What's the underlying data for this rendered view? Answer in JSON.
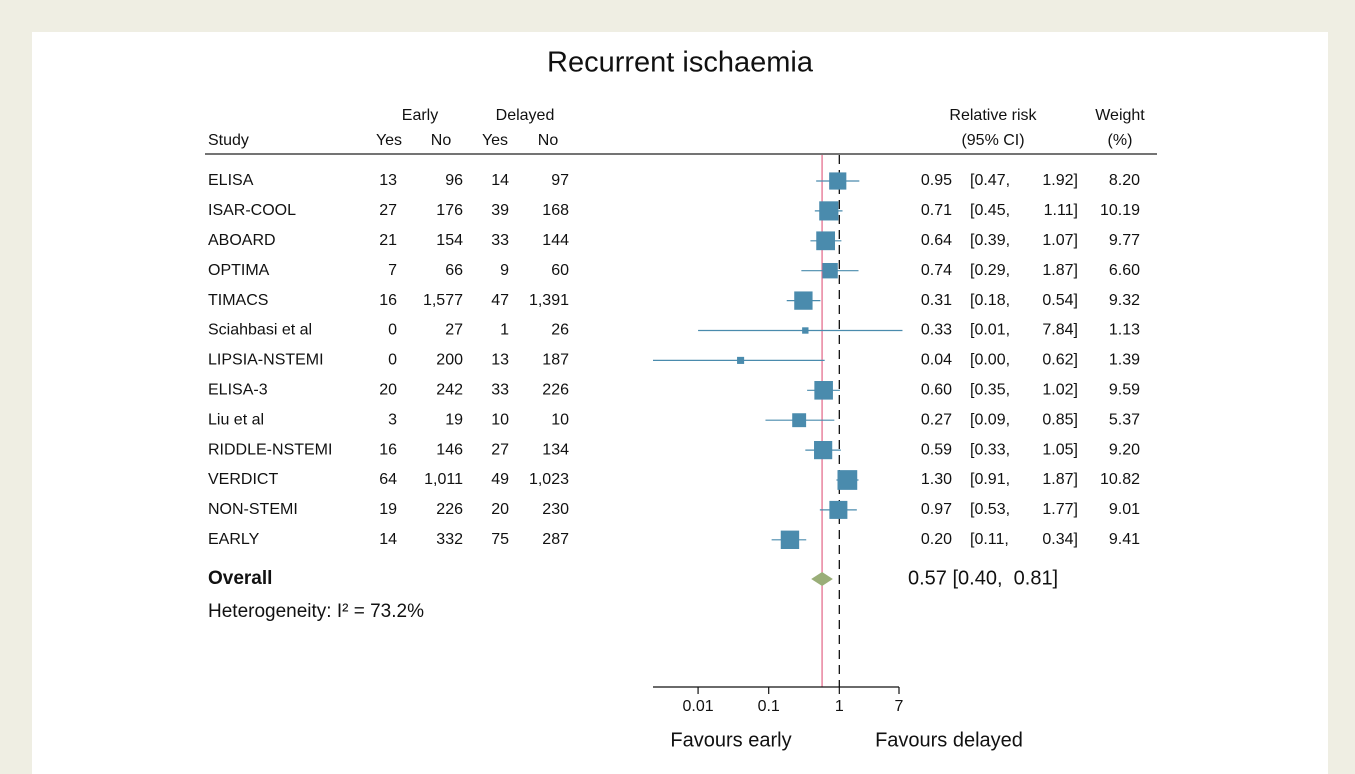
{
  "chart_data": {
    "type": "forest",
    "title": "Recurrent ischaemia",
    "group_headers": [
      "Early",
      "Delayed"
    ],
    "column_headers": [
      "Study",
      "Yes",
      "No",
      "Yes",
      "No"
    ],
    "rr_header": [
      "Relative risk",
      "(95% CI)"
    ],
    "weight_header": [
      "Weight",
      "(%)"
    ],
    "categories": [
      "ELISA",
      "ISAR-COOL",
      "ABOARD",
      "OPTIMA",
      "TIMACS",
      "Sciahbasi et al",
      "LIPSIA-NSTEMI",
      "ELISA-3",
      "Liu et al",
      "RIDDLE-NSTEMI",
      "VERDICT",
      "NON-STEMI",
      "EARLY"
    ],
    "counts": [
      [
        "13",
        "96",
        "14",
        "97"
      ],
      [
        "27",
        "176",
        "39",
        "168"
      ],
      [
        "21",
        "154",
        "33",
        "144"
      ],
      [
        "7",
        "66",
        "9",
        "60"
      ],
      [
        "16",
        "1,577",
        "47",
        "1,391"
      ],
      [
        "0",
        "27",
        "1",
        "26"
      ],
      [
        "0",
        "200",
        "13",
        "187"
      ],
      [
        "20",
        "242",
        "33",
        "226"
      ],
      [
        "3",
        "19",
        "10",
        "10"
      ],
      [
        "16",
        "146",
        "27",
        "134"
      ],
      [
        "64",
        "1,011",
        "49",
        "1,023"
      ],
      [
        "19",
        "226",
        "20",
        "230"
      ],
      [
        "14",
        "332",
        "75",
        "287"
      ]
    ],
    "values": [
      0.95,
      0.71,
      0.64,
      0.74,
      0.31,
      0.33,
      0.04,
      0.6,
      0.27,
      0.59,
      1.3,
      0.97,
      0.2
    ],
    "value_labels": [
      "0.95",
      "0.71",
      "0.64",
      "0.74",
      "0.31",
      "0.33",
      "0.04",
      "0.60",
      "0.27",
      "0.59",
      "1.30",
      "0.97",
      "0.20"
    ],
    "lower": [
      0.47,
      0.45,
      0.39,
      0.29,
      0.18,
      0.01,
      0.0023,
      0.35,
      0.09,
      0.33,
      0.91,
      0.53,
      0.11
    ],
    "lower_labels": [
      "[0.47,",
      "[0.45,",
      "[0.39,",
      "[0.29,",
      "[0.18,",
      "[0.01,",
      "[0.00,",
      "[0.35,",
      "[0.09,",
      "[0.33,",
      "[0.91,",
      "[0.53,",
      "[0.11,"
    ],
    "upper": [
      1.92,
      1.11,
      1.07,
      1.87,
      0.54,
      7.84,
      0.62,
      1.02,
      0.85,
      1.05,
      1.87,
      1.77,
      0.34
    ],
    "upper_labels": [
      "1.92]",
      "1.11]",
      "1.07]",
      "1.87]",
      "0.54]",
      "7.84]",
      "0.62]",
      "1.02]",
      "0.85]",
      "1.05]",
      "1.87]",
      "1.77]",
      "0.34]"
    ],
    "weights": [
      8.2,
      10.19,
      9.77,
      6.6,
      9.32,
      1.13,
      1.39,
      9.59,
      5.37,
      9.2,
      10.82,
      9.01,
      9.41
    ],
    "weight_labels": [
      "8.20",
      "10.19",
      "9.77",
      "6.60",
      "9.32",
      "1.13",
      "1.39",
      "9.59",
      "5.37",
      "9.20",
      "10.82",
      "9.01",
      "9.41"
    ],
    "overall": {
      "name": "Overall",
      "value": 0.57,
      "lower": 0.4,
      "upper": 0.81,
      "label": "0.57 [0.40,  0.81]"
    },
    "heterogeneity": "Heterogeneity: I² = 73.2%",
    "x_labels": [
      "Favours early",
      "Favours delayed"
    ],
    "xscale": "log",
    "xlim": [
      0.0023,
      7
    ],
    "xticks": [
      0.01,
      0.1,
      1,
      7
    ],
    "reference": 1,
    "color": "#4a8bad",
    "overall_color": "#9aae78",
    "overall_line_color": "#e4708f"
  }
}
